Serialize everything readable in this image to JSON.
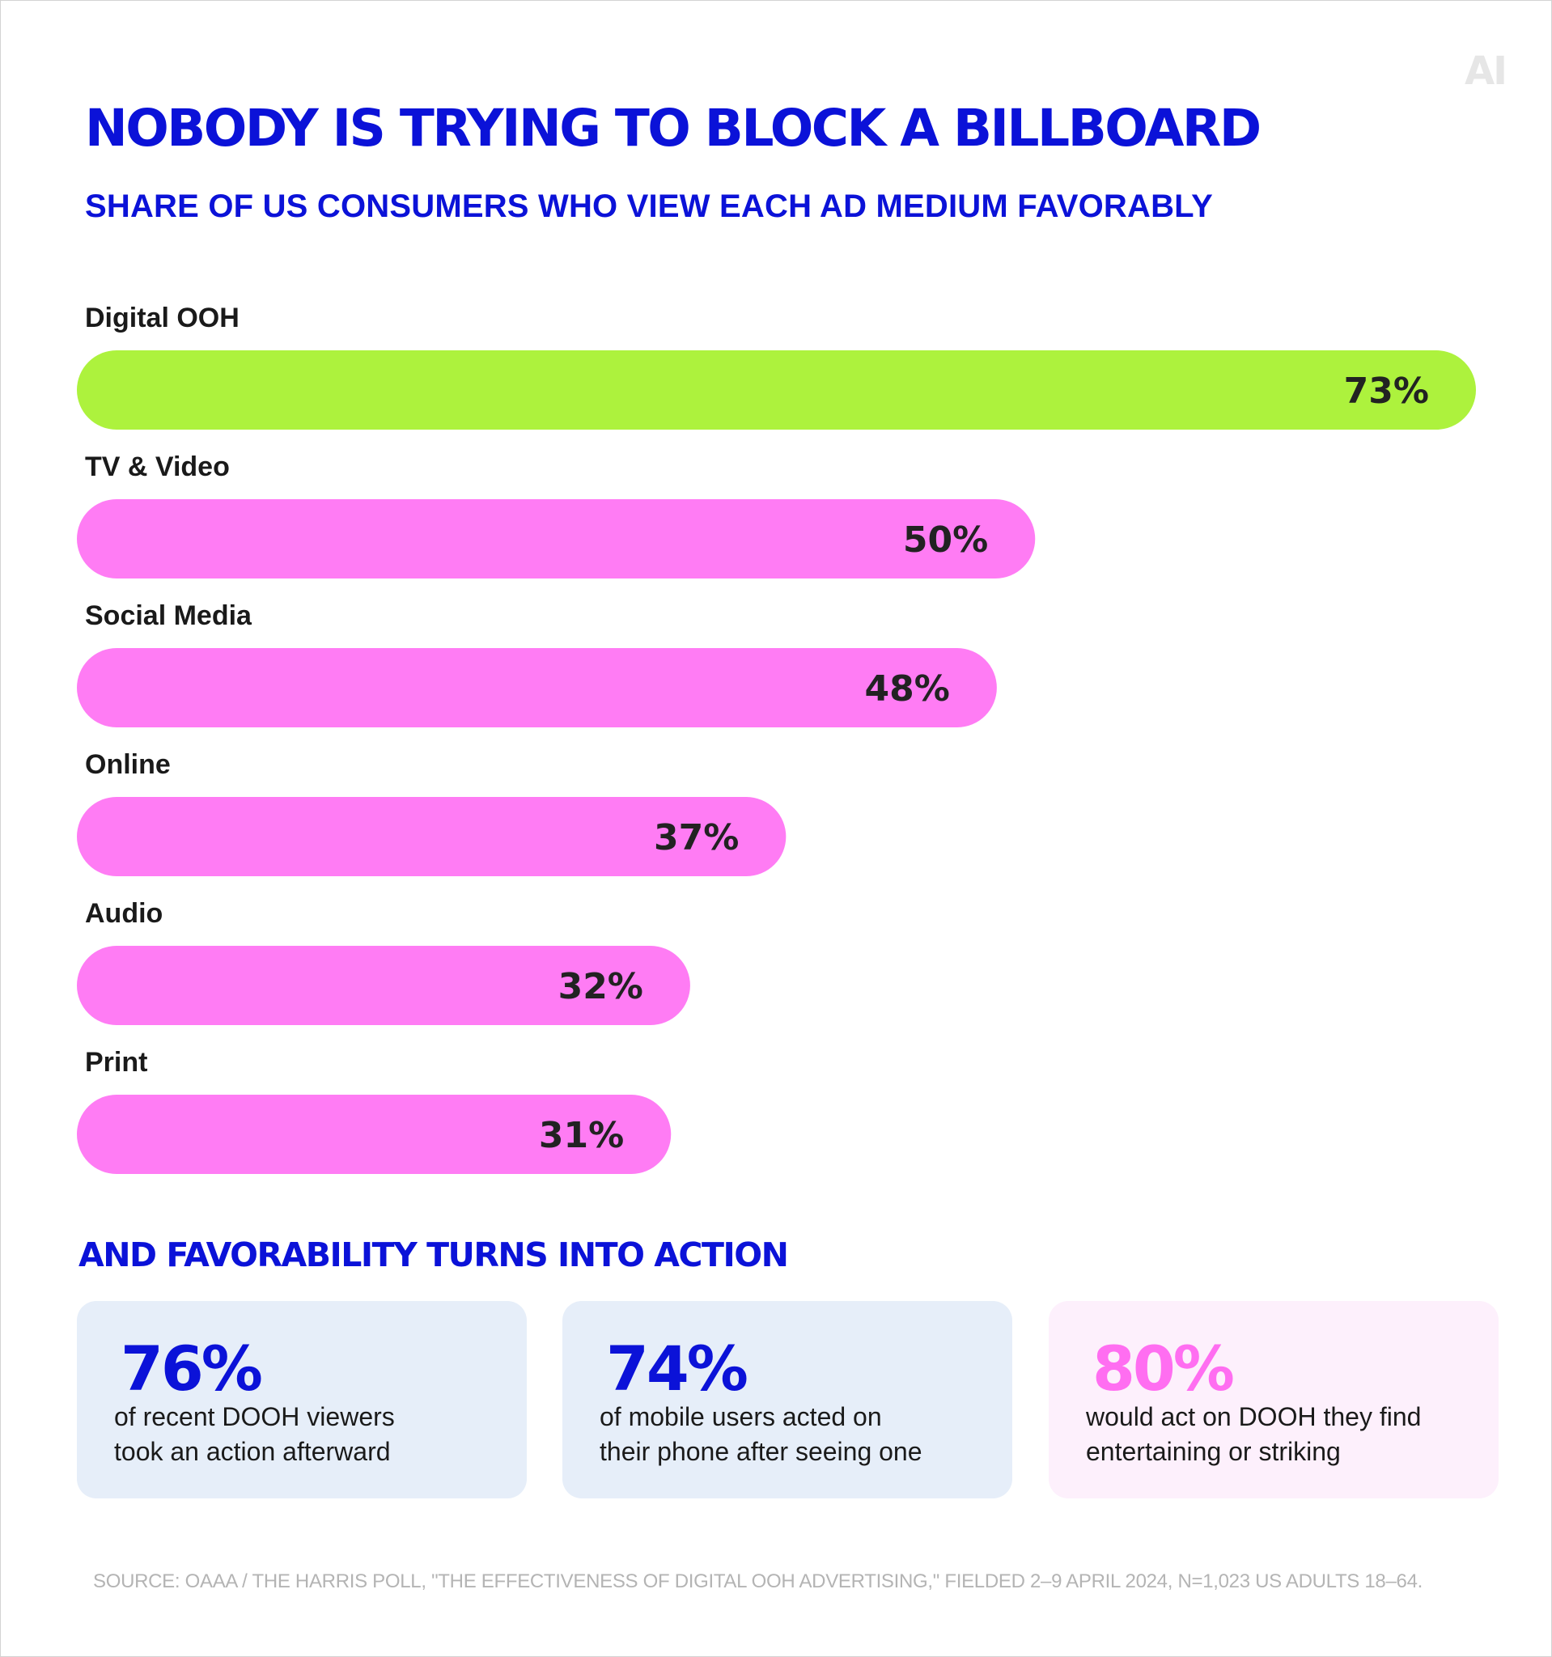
{
  "logo": {
    "text": "AI",
    "color": "#e6e6e6"
  },
  "title": "NOBODY IS TRYING TO BLOCK A BILLBOARD",
  "subtitle": "SHARE OF US CONSUMERS WHO VIEW EACH AD MEDIUM FAVORABLY",
  "colors": {
    "accent_blue": "#0b12d8",
    "highlight_green": "#adf23d",
    "bar_pink": "#ff7cf4",
    "stat_pink": "#ff6ef1"
  },
  "chart_data": {
    "type": "bar",
    "orientation": "horizontal",
    "title": "NOBODY IS TRYING TO BLOCK A BILLBOARD",
    "subtitle": "SHARE OF US CONSUMERS WHO VIEW EACH AD MEDIUM FAVORABLY",
    "categories": [
      "Digital OOH",
      "TV & Video",
      "Social Media",
      "Online",
      "Audio",
      "Print"
    ],
    "values": [
      73,
      50,
      48,
      37,
      32,
      31
    ],
    "value_labels": [
      "73%",
      "50%",
      "48%",
      "37%",
      "32%",
      "31%"
    ],
    "unit": "%",
    "bar_colors": [
      "#adf23d",
      "#ff7cf4",
      "#ff7cf4",
      "#ff7cf4",
      "#ff7cf4",
      "#ff7cf4"
    ],
    "grid": false,
    "axes_visible": false
  },
  "section_title": "AND FAVORABILITY TURNS INTO ACTION",
  "cards": [
    {
      "stat": "76%",
      "text": "of recent DOOH viewers\ntook an action afterward",
      "bg": "#e6eef9",
      "stat_color": "#0b12d8"
    },
    {
      "stat": "74%",
      "text": "of mobile users acted on\ntheir phone after seeing one",
      "bg": "#e6eef9",
      "stat_color": "#0b12d8"
    },
    {
      "stat": "80%",
      "text": "would act on DOOH they find\nentertaining or striking",
      "bg": "#fdf0fc",
      "stat_color": "#ff6ef1"
    }
  ],
  "source": "SOURCE: OAAA / THE HARRIS POLL, \"THE EFFECTIVENESS OF DIGITAL OOH ADVERTISING,\" FIELDED 2–9 APRIL 2024, N=1,023 US ADULTS 18–64."
}
